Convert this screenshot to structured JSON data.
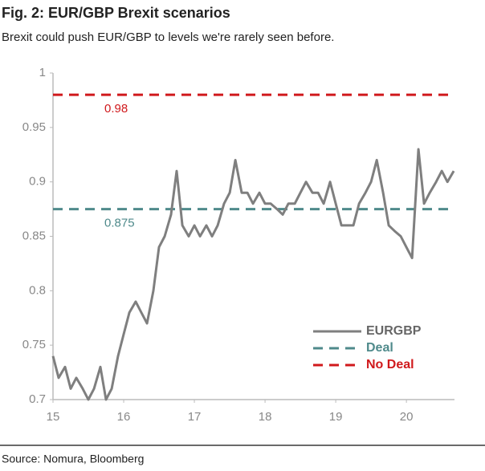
{
  "chart_data": {
    "type": "line",
    "title": "Fig. 2: EUR/GBP Brexit scenarios",
    "subtitle": "Brexit could push EUR/GBP to levels we're rarely seen before.",
    "source": "Source: Nomura, Bloomberg",
    "x": [
      15,
      15.08,
      15.17,
      15.25,
      15.33,
      15.42,
      15.5,
      15.58,
      15.67,
      15.75,
      15.83,
      15.92,
      16,
      16.08,
      16.17,
      16.25,
      16.33,
      16.42,
      16.5,
      16.58,
      16.67,
      16.75,
      16.83,
      16.92,
      17,
      17.08,
      17.17,
      17.25,
      17.33,
      17.42,
      17.5,
      17.58,
      17.67,
      17.75,
      17.83,
      17.92,
      18,
      18.08,
      18.17,
      18.25,
      18.33,
      18.42,
      18.5,
      18.58,
      18.67,
      18.75,
      18.83,
      18.92,
      19,
      19.08,
      19.17,
      19.25,
      19.33,
      19.42,
      19.5,
      19.58,
      19.67,
      19.75,
      19.83,
      19.92,
      20,
      20.08,
      20.17,
      20.25,
      20.33,
      20.42,
      20.5,
      20.58,
      20.67
    ],
    "series": [
      {
        "name": "EURGBP",
        "color": "#7f7f7f",
        "values": [
          0.74,
          0.72,
          0.73,
          0.71,
          0.72,
          0.71,
          0.7,
          0.71,
          0.73,
          0.7,
          0.71,
          0.74,
          0.76,
          0.78,
          0.79,
          0.78,
          0.77,
          0.8,
          0.84,
          0.85,
          0.87,
          0.91,
          0.86,
          0.85,
          0.86,
          0.85,
          0.86,
          0.85,
          0.86,
          0.88,
          0.89,
          0.92,
          0.89,
          0.89,
          0.88,
          0.89,
          0.88,
          0.88,
          0.875,
          0.87,
          0.88,
          0.88,
          0.89,
          0.9,
          0.89,
          0.89,
          0.88,
          0.9,
          0.88,
          0.86,
          0.86,
          0.86,
          0.88,
          0.89,
          0.9,
          0.92,
          0.89,
          0.86,
          0.855,
          0.85,
          0.84,
          0.83,
          0.93,
          0.88,
          0.89,
          0.9,
          0.91,
          0.9,
          0.91
        ]
      }
    ],
    "reference_lines": [
      {
        "name": "Deal",
        "value": 0.875,
        "color": "#4f8a8b"
      },
      {
        "name": "No Deal",
        "value": 0.98,
        "color": "#d0191c"
      }
    ],
    "xlim": [
      15,
      20.68
    ],
    "xticks": [
      15,
      16,
      17,
      18,
      19,
      20
    ],
    "ylim": [
      0.7,
      1
    ],
    "yticks": [
      0.7,
      0.75,
      0.8,
      0.85,
      0.9,
      0.95,
      1
    ],
    "legend": "lower right"
  }
}
